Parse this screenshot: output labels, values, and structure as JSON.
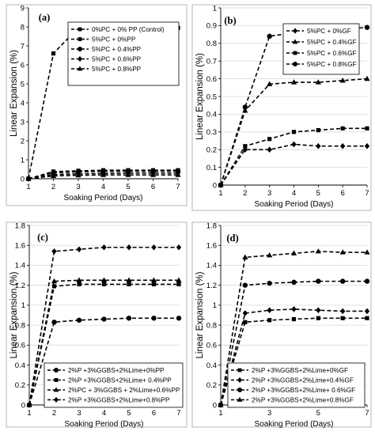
{
  "figure": {
    "background": "#ffffff",
    "line_color": "#000000",
    "grid_color": "#d9d9d9"
  },
  "chart_data": [
    {
      "type": "line",
      "panel_label": "(a)",
      "xlabel": "Soaking Period (Days)",
      "ylabel": "Linear Expansion (%)",
      "x": [
        1,
        2,
        3,
        4,
        5,
        6,
        7
      ],
      "xlim": [
        1,
        7
      ],
      "xticks": [
        "1",
        "2",
        "3",
        "4",
        "5",
        "6",
        "7"
      ],
      "ylim": [
        0,
        9
      ],
      "yticks": [
        "0",
        "1",
        "2",
        "3",
        "4",
        "5",
        "6",
        "7",
        "8",
        "9"
      ],
      "grid": false,
      "legend_position": "upper-right",
      "series": [
        {
          "name": "0%PC + 0% PP (Control)",
          "marker": "square",
          "values": [
            0,
            6.6,
            7.95,
            7.85,
            7.95,
            7.95,
            7.95
          ]
        },
        {
          "name": "5%PC + 0%PP",
          "marker": "square",
          "values": [
            0,
            0.38,
            0.42,
            0.45,
            0.45,
            0.45,
            0.45
          ]
        },
        {
          "name": "5%PC + 0.4%PP",
          "marker": "circle",
          "values": [
            0,
            0.32,
            0.36,
            0.39,
            0.4,
            0.4,
            0.4
          ]
        },
        {
          "name": "5%PC + 0.6%PP",
          "marker": "diamond",
          "values": [
            0,
            0.22,
            0.26,
            0.28,
            0.3,
            0.3,
            0.3
          ]
        },
        {
          "name": "5%PC + 0.8%PP",
          "marker": "triangle",
          "values": [
            0,
            0.15,
            0.18,
            0.2,
            0.2,
            0.2,
            0.2
          ]
        }
      ]
    },
    {
      "type": "line",
      "panel_label": "(b)",
      "xlabel": "Soaking Period (Days)",
      "ylabel": "Linear Expansion (%)",
      "x": [
        1,
        2,
        3,
        4,
        5,
        6,
        7
      ],
      "xlim": [
        1,
        7
      ],
      "xticks": [
        "1",
        "2",
        "3",
        "4",
        "5",
        "6",
        "7"
      ],
      "ylim": [
        0,
        1.0
      ],
      "yticks": [
        "0",
        "0.1",
        "0.2",
        "0.3",
        "0.4",
        "0.5",
        "0.6",
        "0.7",
        "0.8",
        "0.9",
        "1"
      ],
      "grid": true,
      "legend_position": "upper-right",
      "series": [
        {
          "name": "5%PC + 0%GF",
          "marker": "diamond",
          "values": [
            0,
            0.2,
            0.2,
            0.23,
            0.22,
            0.22,
            0.22
          ]
        },
        {
          "name": "5%PC + 0.4%GF",
          "marker": "triangle",
          "values": [
            0,
            0.42,
            0.57,
            0.58,
            0.58,
            0.59,
            0.6
          ]
        },
        {
          "name": "5%PC + 0.6%GF",
          "marker": "square",
          "values": [
            0,
            0.22,
            0.26,
            0.3,
            0.31,
            0.32,
            0.32
          ]
        },
        {
          "name": "5%PC + 0.8%GF",
          "marker": "circle",
          "values": [
            0,
            0.44,
            0.84,
            0.86,
            0.88,
            0.88,
            0.89
          ]
        }
      ]
    },
    {
      "type": "line",
      "panel_label": "(c)",
      "xlabel": "Soaking Period (Days)",
      "ylabel": "Linear Expansion (%)",
      "x": [
        1,
        2,
        3,
        4,
        5,
        6,
        7
      ],
      "xlim": [
        1,
        7
      ],
      "xticks": [
        "1",
        "2",
        "3",
        "4",
        "5",
        "6",
        "7"
      ],
      "ylim": [
        0,
        1.8
      ],
      "yticks": [
        "0",
        "0.2",
        "0.4",
        "0.6",
        "0.8",
        "1",
        "1.2",
        "1.4",
        "1.6",
        "1.8"
      ],
      "grid": true,
      "legend_position": "lower-right",
      "series": [
        {
          "name": "2%P +3%GGBS+2%Lime+0%PP",
          "marker": "circle",
          "values": [
            0,
            0.83,
            0.85,
            0.86,
            0.87,
            0.87,
            0.87
          ]
        },
        {
          "name": "2%P +3%GGBS+2%Lime+ 0.4%PP",
          "marker": "square",
          "values": [
            0,
            1.19,
            1.21,
            1.21,
            1.21,
            1.21,
            1.21
          ]
        },
        {
          "name": "2%PC + 3%GGBS + 2%Lime+0.6%PP",
          "marker": "triangle",
          "values": [
            0,
            1.24,
            1.25,
            1.25,
            1.25,
            1.25,
            1.25
          ]
        },
        {
          "name": "2%P +3%GGBS+2%Lime+0.8%PP",
          "marker": "diamond",
          "values": [
            0,
            1.54,
            1.56,
            1.58,
            1.58,
            1.58,
            1.58
          ]
        }
      ]
    },
    {
      "type": "line",
      "panel_label": "(d)",
      "xlabel": "Soaking Period (Days)",
      "ylabel": "Linear Expansion (%)",
      "x": [
        1,
        2,
        3,
        4,
        5,
        6,
        7
      ],
      "xlim": [
        1,
        7
      ],
      "xticks": [
        "1",
        "3",
        "5",
        "7"
      ],
      "ylim": [
        0,
        1.8
      ],
      "yticks": [
        "0",
        "0.2",
        "0.4",
        "0.6",
        "0.8",
        "1",
        "1.2",
        "1.4",
        "1.6",
        "1.8"
      ],
      "grid": true,
      "legend_position": "lower-right",
      "series": [
        {
          "name": "2%P +3%GGBS+2%Lime+0%GF",
          "marker": "square",
          "values": [
            0,
            0.83,
            0.85,
            0.86,
            0.87,
            0.87,
            0.87
          ]
        },
        {
          "name": "2%P +3%GGBS+2%Lime+0.4%GF",
          "marker": "diamond",
          "values": [
            0,
            0.92,
            0.95,
            0.96,
            0.95,
            0.94,
            0.94
          ]
        },
        {
          "name": "2%P +3%GGBS+2%Lime+ 0.6%GF",
          "marker": "circle",
          "values": [
            0,
            1.2,
            1.22,
            1.23,
            1.24,
            1.24,
            1.24
          ]
        },
        {
          "name": "2%P +3%GGBS+2%Lime+0.8%GF",
          "marker": "triangle",
          "values": [
            0,
            1.48,
            1.5,
            1.52,
            1.54,
            1.53,
            1.53
          ]
        }
      ]
    }
  ]
}
